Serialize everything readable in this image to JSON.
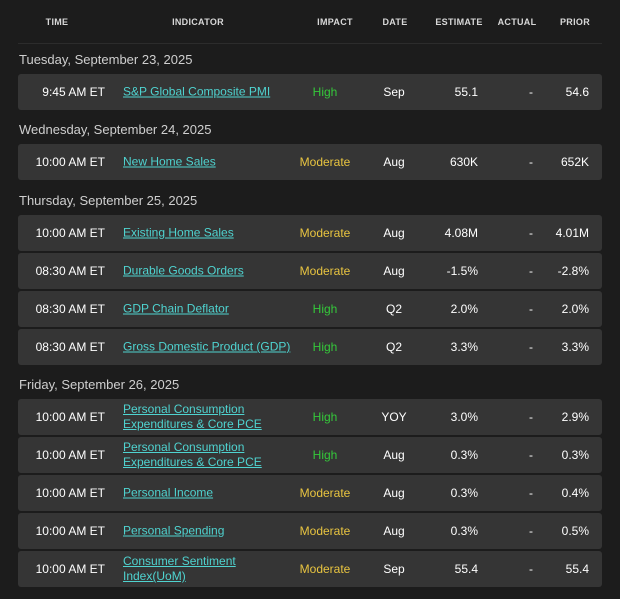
{
  "colors": {
    "high": "#35c83a",
    "moderate": "#e8c440",
    "link": "#4fd3d0"
  },
  "headers": {
    "time": "TIME",
    "indicator": "INDICATOR",
    "impact": "IMPACT",
    "date": "DATE",
    "estimate": "ESTIMATE",
    "actual": "ACTUAL",
    "prior": "PRIOR"
  },
  "days": [
    {
      "label": "Tuesday, September 23, 2025",
      "events": [
        {
          "time": "9:45 AM ET",
          "indicator": "S&P Global Composite PMI",
          "impact": "High",
          "date": "Sep",
          "estimate": "55.1",
          "actual": "-",
          "prior": "54.6"
        }
      ]
    },
    {
      "label": "Wednesday, September 24, 2025",
      "events": [
        {
          "time": "10:00 AM ET",
          "indicator": "New Home Sales",
          "impact": "Moderate",
          "date": "Aug",
          "estimate": "630K",
          "actual": "-",
          "prior": "652K"
        }
      ]
    },
    {
      "label": "Thursday, September 25, 2025",
      "events": [
        {
          "time": "10:00 AM ET",
          "indicator": "Existing Home Sales",
          "impact": "Moderate",
          "date": "Aug",
          "estimate": "4.08M",
          "actual": "-",
          "prior": "4.01M"
        },
        {
          "time": "08:30 AM ET",
          "indicator": "Durable Goods Orders",
          "impact": "Moderate",
          "date": "Aug",
          "estimate": "-1.5%",
          "actual": "-",
          "prior": "-2.8%"
        },
        {
          "time": "08:30 AM ET",
          "indicator": "GDP Chain Deflator",
          "impact": "High",
          "date": "Q2",
          "estimate": "2.0%",
          "actual": "-",
          "prior": "2.0%"
        },
        {
          "time": "08:30 AM ET",
          "indicator": "Gross Domestic Product (GDP)",
          "impact": "High",
          "date": "Q2",
          "estimate": "3.3%",
          "actual": "-",
          "prior": "3.3%"
        }
      ]
    },
    {
      "label": "Friday, September 26, 2025",
      "events": [
        {
          "time": "10:00 AM ET",
          "indicator": "Personal Consumption Expenditures & Core PCE",
          "impact": "High",
          "date": "YOY",
          "estimate": "3.0%",
          "actual": "-",
          "prior": "2.9%"
        },
        {
          "time": "10:00 AM ET",
          "indicator": "Personal Consumption Expenditures & Core PCE",
          "impact": "High",
          "date": "Aug",
          "estimate": "0.3%",
          "actual": "-",
          "prior": "0.3%"
        },
        {
          "time": "10:00 AM ET",
          "indicator": "Personal Income",
          "impact": "Moderate",
          "date": "Aug",
          "estimate": "0.3%",
          "actual": "-",
          "prior": "0.4%"
        },
        {
          "time": "10:00 AM ET",
          "indicator": "Personal Spending",
          "impact": "Moderate",
          "date": "Aug",
          "estimate": "0.3%",
          "actual": "-",
          "prior": "0.5%"
        },
        {
          "time": "10:00 AM ET",
          "indicator": "Consumer Sentiment Index(UoM)",
          "impact": "Moderate",
          "date": "Sep",
          "estimate": "55.4",
          "actual": "-",
          "prior": "55.4"
        }
      ]
    }
  ]
}
